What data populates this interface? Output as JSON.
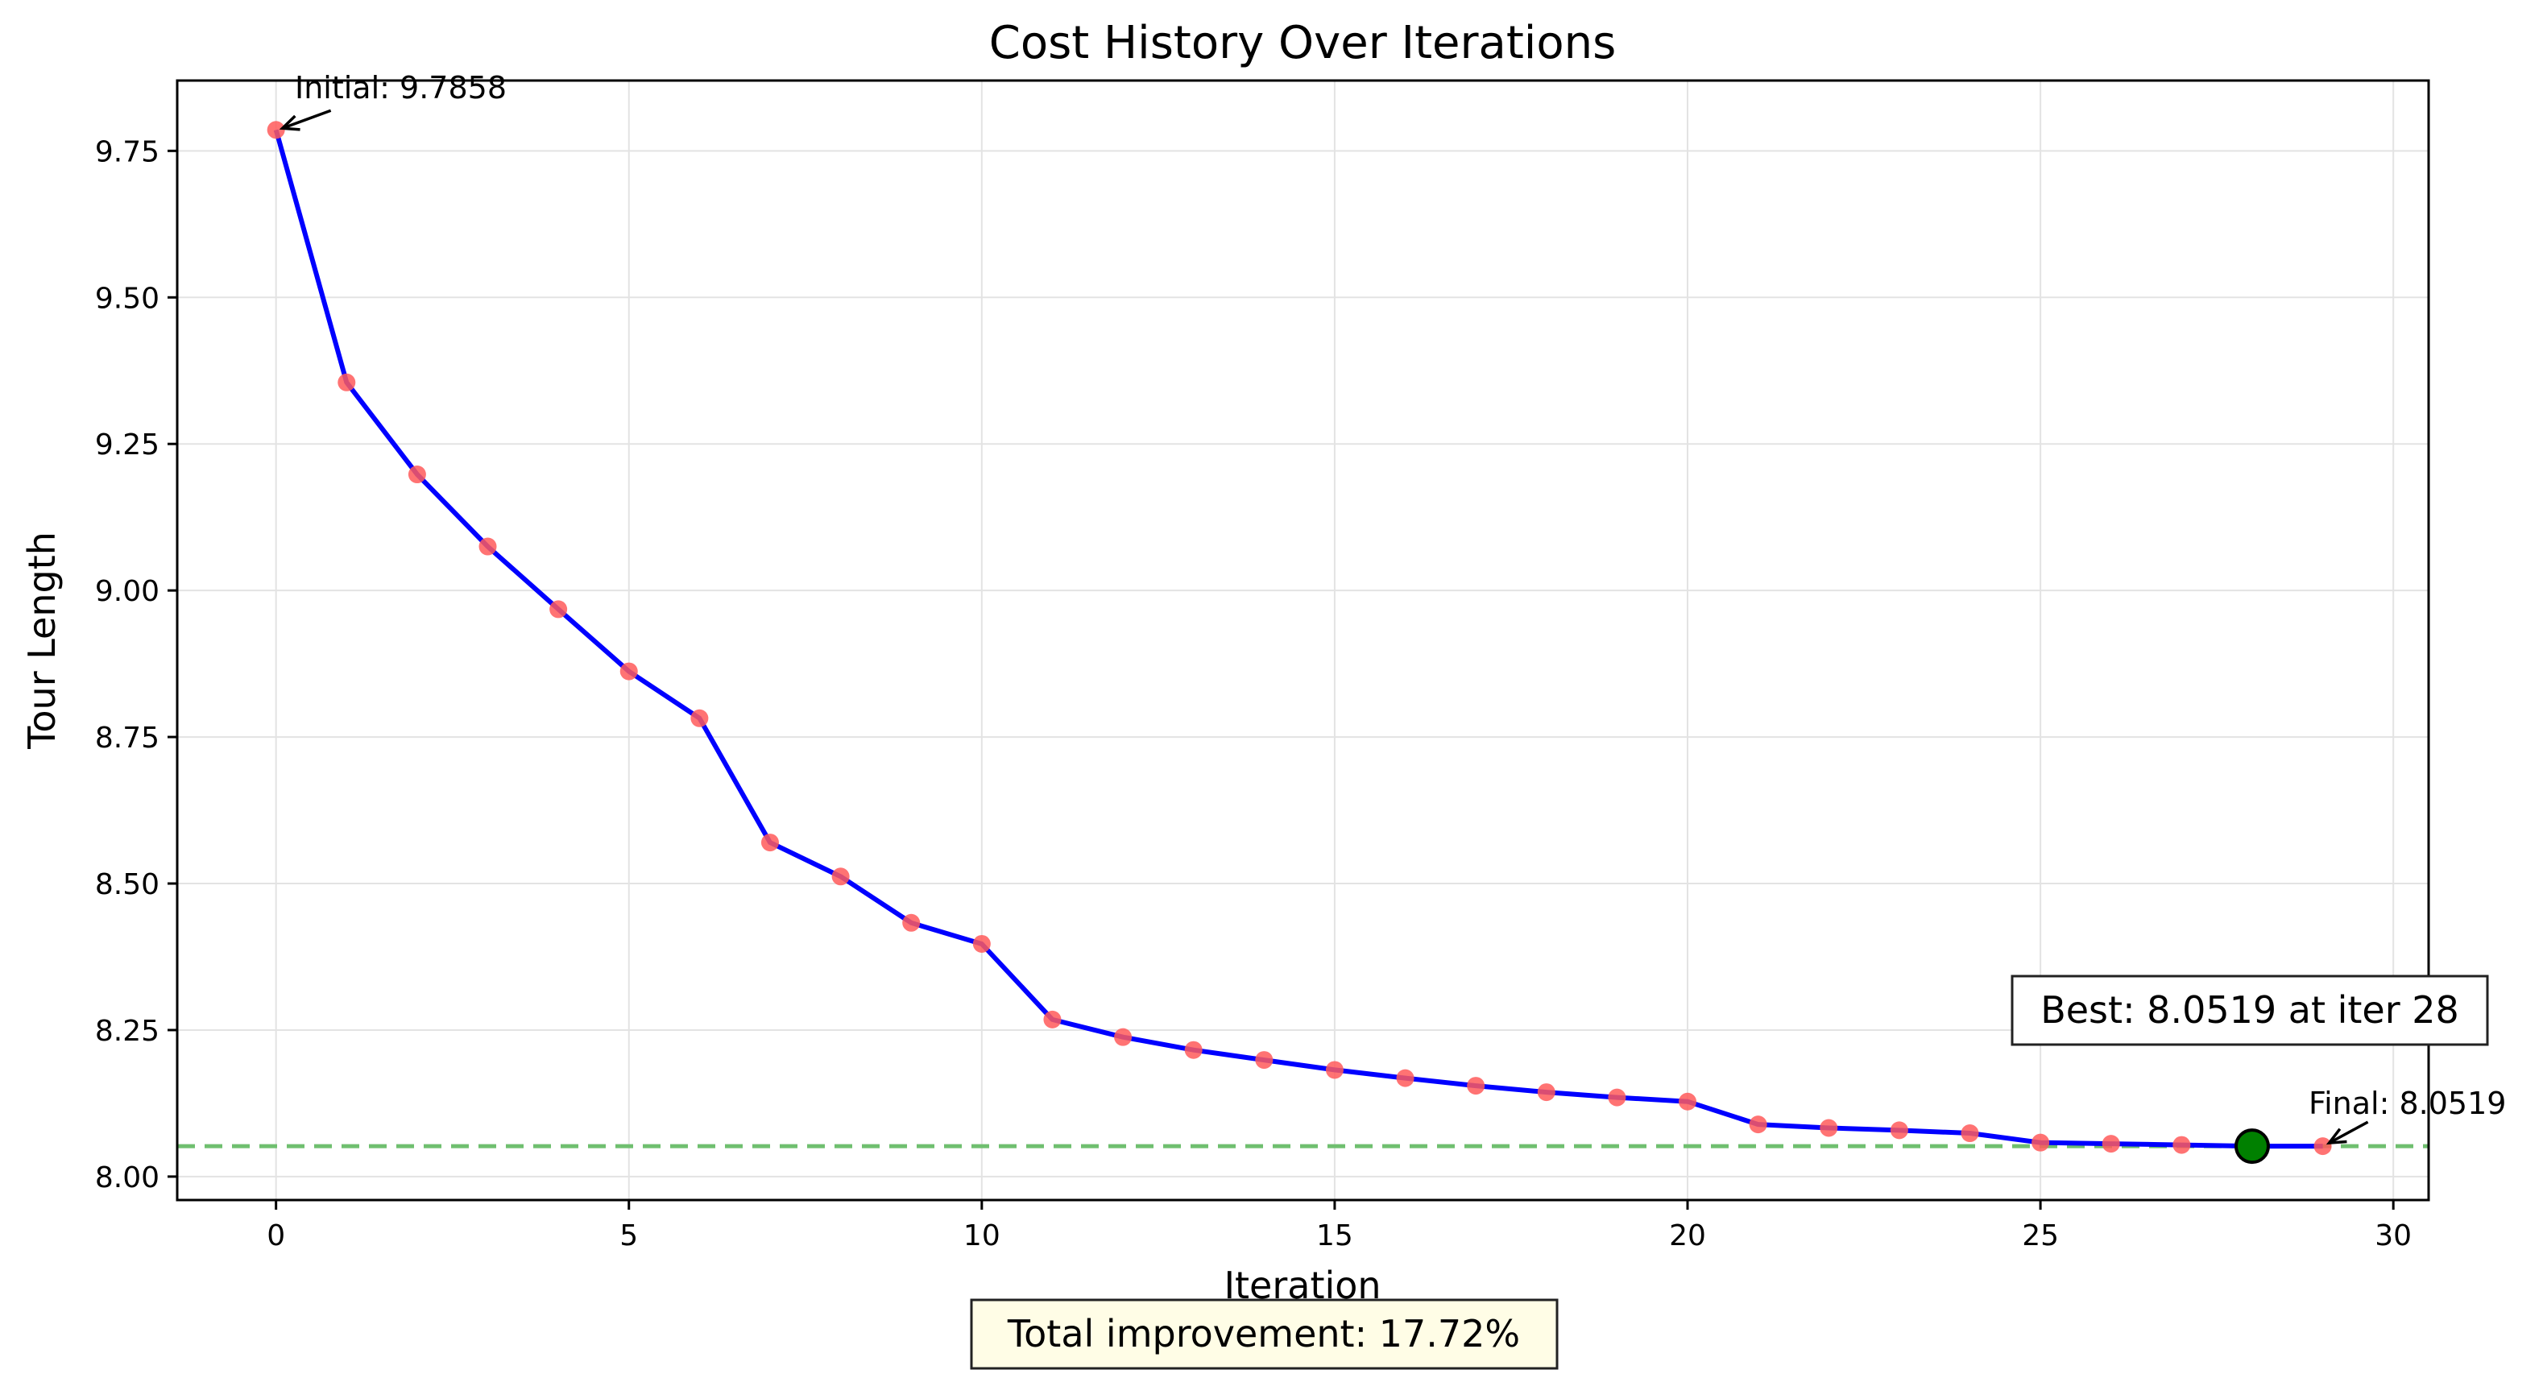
{
  "chart_data": {
    "type": "line",
    "title": "Cost History Over Iterations",
    "xlabel": "Iteration",
    "ylabel": "Tour Length",
    "xlim": [
      -1.4,
      30.5
    ],
    "ylim": [
      7.96,
      9.87
    ],
    "xticks": [
      0,
      5,
      10,
      15,
      20,
      25,
      30
    ],
    "yticks": [
      8.0,
      8.25,
      8.5,
      8.75,
      9.0,
      9.25,
      9.5,
      9.75
    ],
    "ytick_labels": [
      "8.00",
      "8.25",
      "8.50",
      "8.75",
      "9.00",
      "9.25",
      "9.50",
      "9.75"
    ],
    "grid": true,
    "x": [
      0,
      1,
      2,
      3,
      4,
      5,
      6,
      7,
      8,
      9,
      10,
      11,
      12,
      13,
      14,
      15,
      16,
      17,
      18,
      19,
      20,
      21,
      22,
      23,
      24,
      25,
      26,
      27,
      28,
      29
    ],
    "series": [
      {
        "values": [
          9.7858,
          9.355,
          9.198,
          9.075,
          8.968,
          8.862,
          8.782,
          8.57,
          8.512,
          8.433,
          8.397,
          8.268,
          8.238,
          8.216,
          8.199,
          8.182,
          8.168,
          8.155,
          8.144,
          8.135,
          8.128,
          8.089,
          8.083,
          8.079,
          8.074,
          8.058,
          8.056,
          8.054,
          8.0519,
          8.0519
        ],
        "line_color": "#0000ff",
        "marker_color": "#ff5a5a"
      }
    ],
    "reference_line": {
      "y": 8.0519,
      "color": "#6fbf6f",
      "style": "dashed"
    },
    "best_point": {
      "x": 28,
      "y": 8.0519,
      "color": "#008000"
    },
    "annotations": {
      "initial": "Initial: 9.7858",
      "final": "Final: 8.0519",
      "best": "Best: 8.0519 at iter 28",
      "improvement": "Total improvement: 17.72%"
    },
    "colors": {
      "grid": "#e3e3e3",
      "best_box_fill": "#ffffff",
      "improvement_box_fill": "#fffde6"
    }
  }
}
